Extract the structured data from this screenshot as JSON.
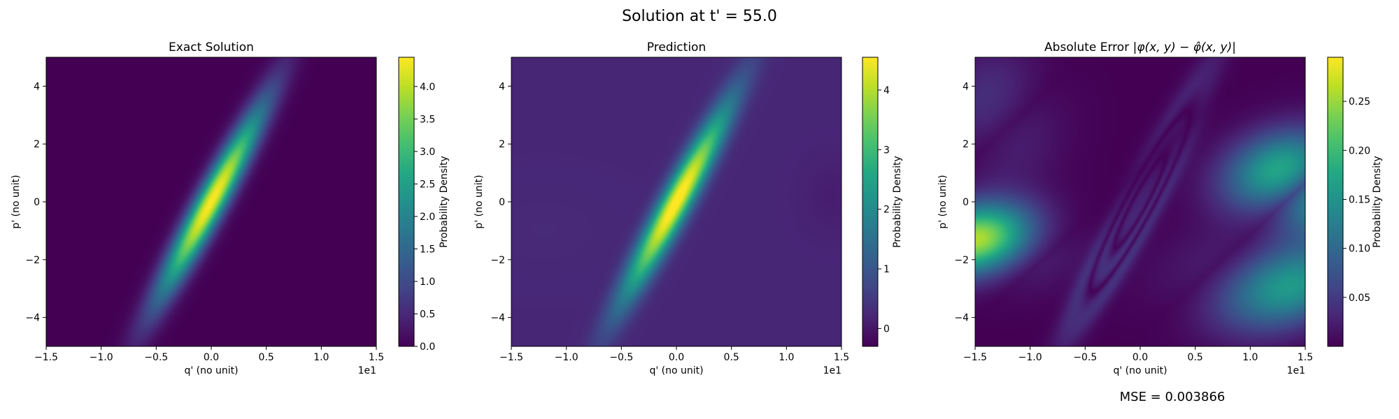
{
  "figure": {
    "title": "Solution at t' = 55.0",
    "mse_text": "MSE = 0.003866"
  },
  "chart_data": [
    {
      "type": "heatmap",
      "title": "Exact Solution",
      "xlabel": "q' (no unit)",
      "ylabel": "p' (no unit)",
      "x_offset_text": "1e1",
      "xlim": [
        -15,
        15
      ],
      "ylim": [
        -5,
        5
      ],
      "xticks": [
        -1.5,
        -1.0,
        -0.5,
        0.0,
        0.5,
        1.0,
        1.5
      ],
      "xtick_labels": [
        "−1.5",
        "−1.0",
        "−0.5",
        "0.0",
        "0.5",
        "1.0",
        "1.5"
      ],
      "yticks": [
        -4,
        -2,
        0,
        2,
        4
      ],
      "ytick_labels": [
        "−4",
        "−2",
        "0",
        "2",
        "4"
      ],
      "colormap": "viridis",
      "colorbar": {
        "label": "Probability Density",
        "range": [
          0.0,
          4.45
        ],
        "ticks": [
          0.0,
          0.5,
          1.0,
          1.5,
          2.0,
          2.5,
          3.0,
          3.5,
          4.0
        ],
        "tick_labels": [
          "0.0",
          "0.5",
          "1.0",
          "1.5",
          "2.0",
          "2.5",
          "3.0",
          "3.5",
          "4.0"
        ]
      },
      "peak_value": 4.45,
      "peak_at": [
        0.0,
        0.0
      ]
    },
    {
      "type": "heatmap",
      "title": "Prediction",
      "xlabel": "q' (no unit)",
      "ylabel": "p' (no unit)",
      "x_offset_text": "1e1",
      "xlim": [
        -15,
        15
      ],
      "ylim": [
        -5,
        5
      ],
      "xticks": [
        -1.5,
        -1.0,
        -0.5,
        0.0,
        0.5,
        1.0,
        1.5
      ],
      "xtick_labels": [
        "−1.5",
        "−1.0",
        "−0.5",
        "0.0",
        "0.5",
        "1.0",
        "1.5"
      ],
      "yticks": [
        -4,
        -2,
        0,
        2,
        4
      ],
      "ytick_labels": [
        "−4",
        "−2",
        "0",
        "2",
        "4"
      ],
      "colormap": "viridis",
      "colorbar": {
        "label": "Probability Density",
        "range": [
          -0.3,
          4.55
        ],
        "ticks": [
          0,
          1,
          2,
          3,
          4
        ],
        "tick_labels": [
          "0",
          "1",
          "2",
          "3",
          "4"
        ]
      },
      "background_value": 0.2,
      "peak_value": 4.5,
      "peak_at": [
        0.0,
        0.0
      ]
    },
    {
      "type": "heatmap",
      "title": "Absolute Error",
      "title_math": "|φ(x, y) − φ̂(x, y)|",
      "xlabel": "q' (no unit)",
      "ylabel": "p' (no unit)",
      "x_offset_text": "1e1",
      "xlim": [
        -15,
        15
      ],
      "ylim": [
        -5,
        5
      ],
      "xticks": [
        -1.5,
        -1.0,
        -0.5,
        0.0,
        0.5,
        1.0,
        1.5
      ],
      "xtick_labels": [
        "−1.5",
        "−1.0",
        "−0.5",
        "0.0",
        "0.5",
        "1.0",
        "1.5"
      ],
      "yticks": [
        -4,
        -2,
        0,
        2,
        4
      ],
      "ytick_labels": [
        "−4",
        "−2",
        "0",
        "2",
        "4"
      ],
      "colormap": "viridis",
      "colorbar": {
        "label": "Probability Density",
        "range": [
          0.0,
          0.295
        ],
        "ticks": [
          0.05,
          0.1,
          0.15,
          0.2,
          0.25
        ],
        "tick_labels": [
          "0.05",
          "0.10",
          "0.15",
          "0.20",
          "0.25"
        ]
      },
      "max_value": 0.29,
      "max_at": [
        15,
        0.7
      ]
    }
  ]
}
